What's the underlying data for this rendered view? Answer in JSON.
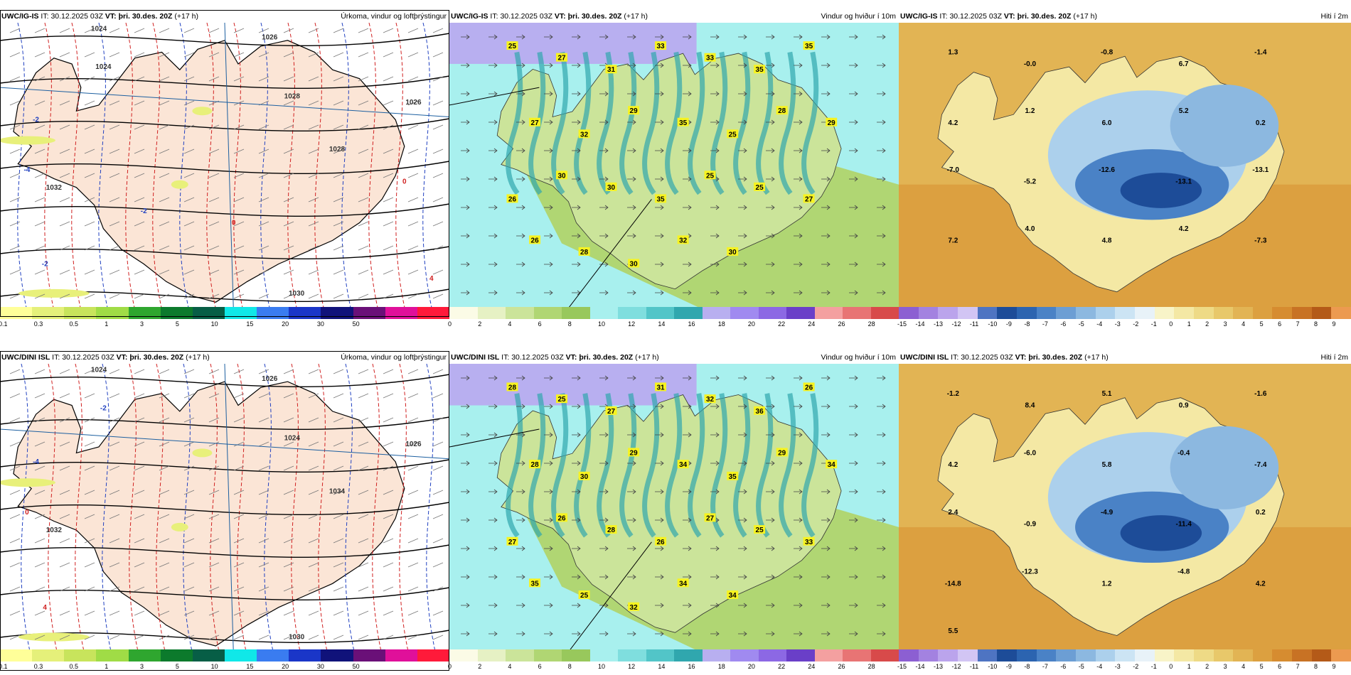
{
  "rows": [
    {
      "model": "UWC/IG-IS",
      "panels": [
        {
          "id": "precip",
          "title_right": "Úrkoma, vindur og loftþrýstingur"
        },
        {
          "id": "wind",
          "title_right": "Vindur og hviður í 10m"
        },
        {
          "id": "temp",
          "title_right": "Hiti í 2m"
        }
      ]
    },
    {
      "model": "UWC/DINI ISL",
      "panels": [
        {
          "id": "precip",
          "title_right": "Úrkoma, vindur og loftþrýstingur"
        },
        {
          "id": "wind",
          "title_right": "Vindur og hviður í 10m"
        },
        {
          "id": "temp",
          "title_right": "Hiti í 2m"
        }
      ]
    }
  ],
  "header": {
    "it_label": "IT:",
    "it_value": "30.12.2025 03Z",
    "vt_label": "VT: þri. 30.des. 20Z",
    "lead": "(+17 h)"
  },
  "colorbars": {
    "precip": {
      "colors": [
        "#ffff99",
        "#e5f07a",
        "#c8e45c",
        "#a0dc46",
        "#2fa62f",
        "#0c7a2c",
        "#075e46",
        "#10e8e8",
        "#3a7cf0",
        "#1a36c8",
        "#10127a",
        "#6a1078",
        "#e0109a",
        "#ff1a3a"
      ],
      "ticks": [
        "0.1",
        "0.3",
        "0.5",
        "1",
        "3",
        "5",
        "10",
        "15",
        "20",
        "30",
        "50"
      ]
    },
    "wind": {
      "colors": [
        "#fbfbe6",
        "#e6f1c4",
        "#cbe49a",
        "#b0d673",
        "#98c85c",
        "#a8f0ee",
        "#7fdede",
        "#52c5c8",
        "#30a7ae",
        "#b8aff0",
        "#a08af0",
        "#8c68e4",
        "#6a3fc8",
        "#f4a0a0",
        "#e87474",
        "#d84a4a"
      ],
      "ticks": [
        "0",
        "2",
        "4",
        "6",
        "8",
        "10",
        "12",
        "14",
        "16",
        "18",
        "20",
        "22",
        "24",
        "26",
        "28"
      ]
    },
    "temp": {
      "colors": [
        "#8c5fd2",
        "#a382e0",
        "#bba4ec",
        "#d2c5f4",
        "#4e74c2",
        "#1d4c98",
        "#2c64b0",
        "#4a82c6",
        "#6c9ed4",
        "#8cb8e0",
        "#acd0ec",
        "#cce4f4",
        "#e8f2f8",
        "#f8f4c8",
        "#f4e8a4",
        "#eeda86",
        "#e8c86a",
        "#e2b454",
        "#dca040",
        "#d68c30",
        "#c87224",
        "#b45a18",
        "#ec9a50"
      ],
      "ticks": [
        "-15",
        "-14",
        "-13",
        "-12",
        "-11",
        "-10",
        "-9",
        "-8",
        "-7",
        "-6",
        "-5",
        "-4",
        "-3",
        "-2",
        "-1",
        "0",
        "1",
        "2",
        "3",
        "4",
        "5",
        "6",
        "7",
        "8",
        "9"
      ]
    }
  },
  "labels": {
    "r0_precip": [
      "1024",
      "1026",
      "1028",
      "1028",
      "1030",
      "1032",
      "1026",
      "1024",
      "-2",
      "-4",
      "-2",
      "4",
      "0",
      "0",
      "-2"
    ],
    "r1_precip": [
      "1024",
      "1026",
      "1024",
      "1034",
      "1030",
      "1032",
      "1026",
      "-2",
      "-4",
      "0",
      "4"
    ],
    "r0_wind": [
      "25",
      "27",
      "31",
      "33",
      "33",
      "35",
      "35",
      "27",
      "32",
      "29",
      "35",
      "25",
      "28",
      "29",
      "26",
      "30",
      "30",
      "35",
      "25",
      "25",
      "27",
      "26",
      "28",
      "30",
      "32",
      "30"
    ],
    "r1_wind": [
      "28",
      "25",
      "27",
      "31",
      "32",
      "36",
      "26",
      "28",
      "30",
      "29",
      "34",
      "35",
      "29",
      "34",
      "27",
      "26",
      "28",
      "26",
      "27",
      "25",
      "33",
      "35",
      "25",
      "32",
      "34",
      "34"
    ],
    "r0_temp": [
      "1.3",
      "-0.0",
      "-0.8",
      "6.7",
      "-1.4",
      "4.2",
      "1.2",
      "6.0",
      "5.2",
      "0.2",
      "-7.0",
      "-5.2",
      "-12.6",
      "-13.1",
      "-13.1",
      "7.2",
      "4.0",
      "4.8",
      "4.2",
      "-7.3"
    ],
    "r1_temp": [
      "-1.2",
      "8.4",
      "5.1",
      "0.9",
      "-1.6",
      "4.2",
      "-6.0",
      "5.8",
      "-0.4",
      "-7.4",
      "2.4",
      "-0.9",
      "-4.9",
      "-11.4",
      "0.2",
      "-14.8",
      "-12.3",
      "1.2",
      "-4.8",
      "4.2",
      "5.5"
    ]
  }
}
